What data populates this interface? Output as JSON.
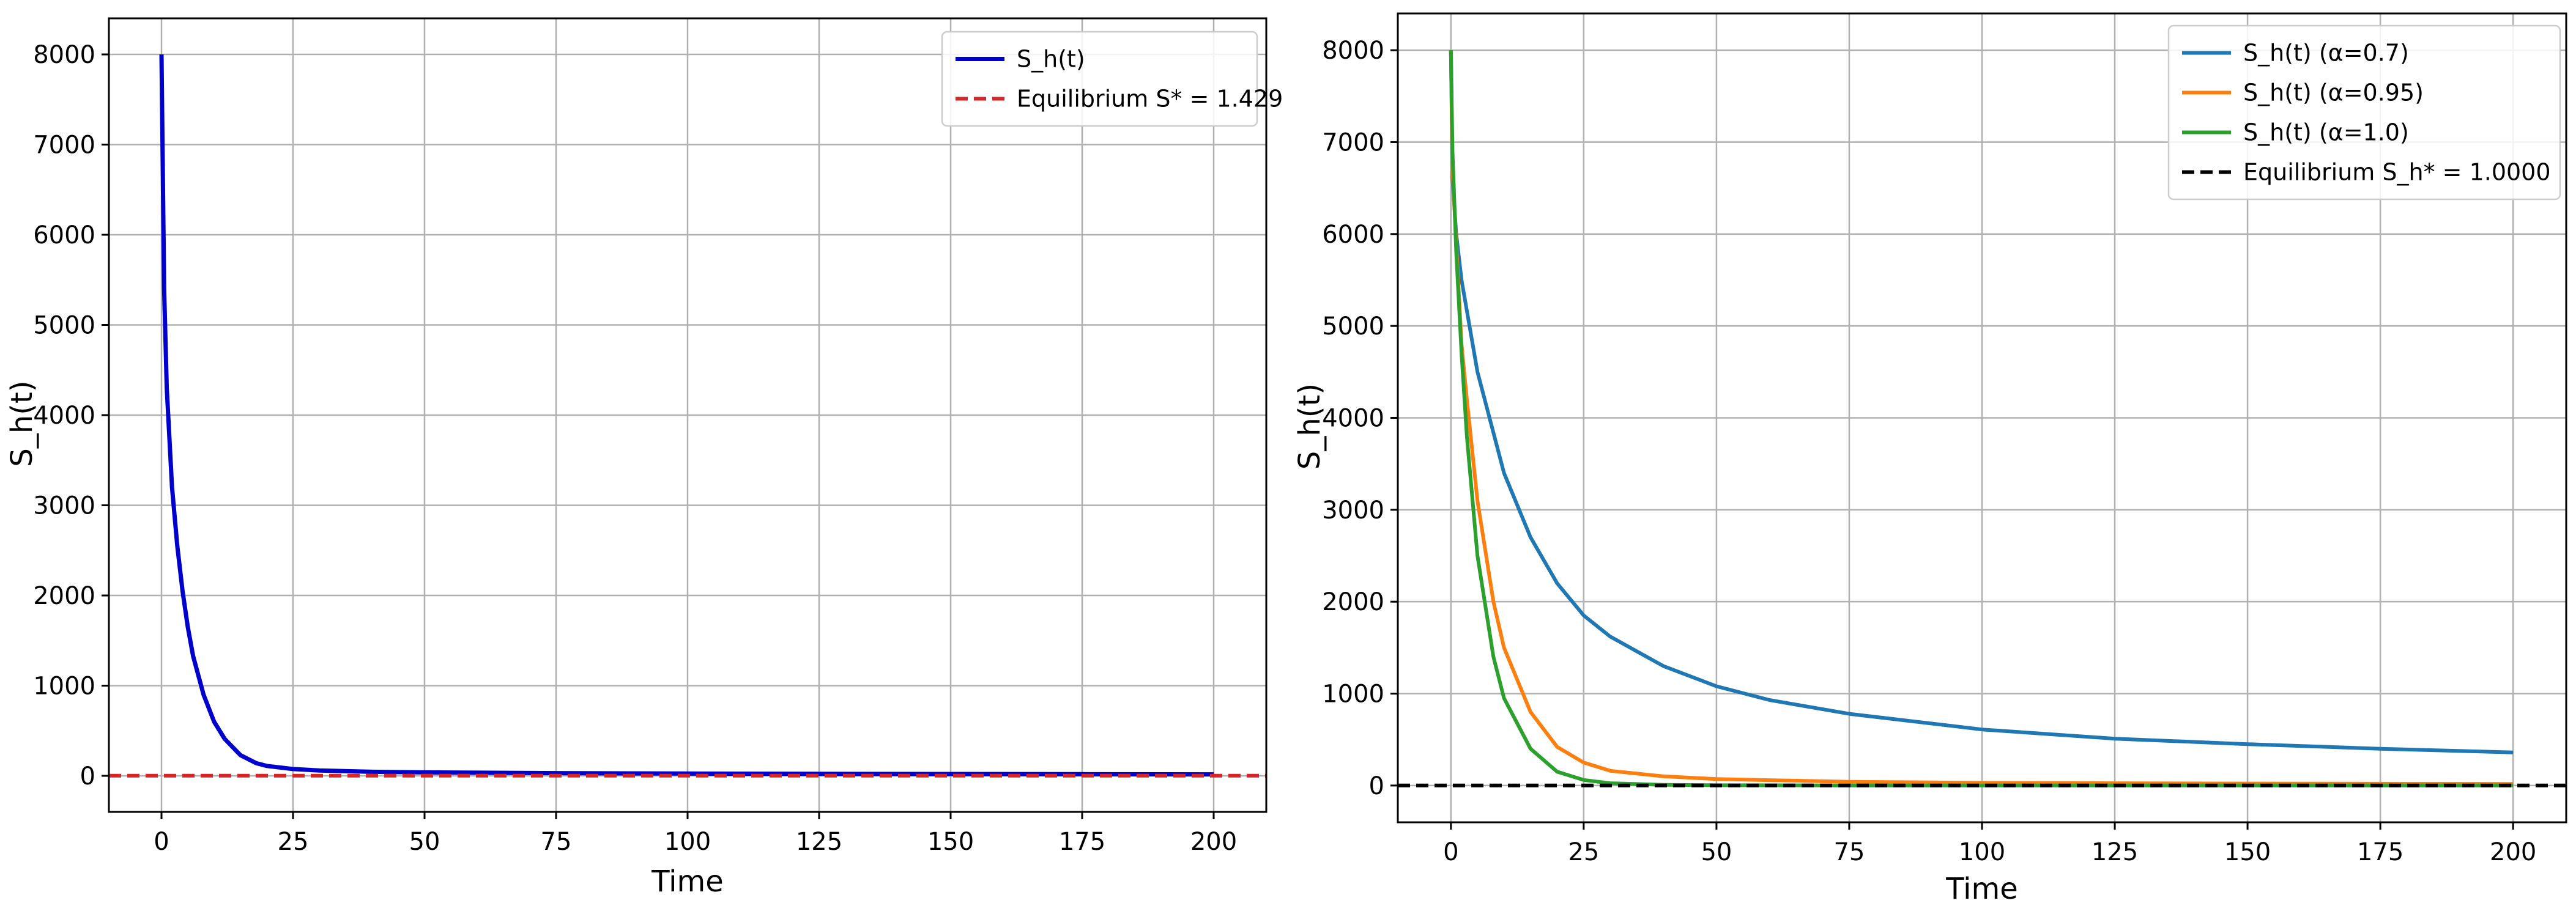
{
  "chart_data": [
    {
      "type": "line",
      "title": "",
      "xlabel": "Time",
      "ylabel": "S_h(t)",
      "xlim": [
        -10,
        210
      ],
      "ylim": [
        -400,
        8400
      ],
      "xticks": [
        0,
        25,
        50,
        75,
        100,
        125,
        150,
        175,
        200
      ],
      "xtick_labels": [
        "0",
        "25",
        "50",
        "75",
        "100",
        "125",
        "150",
        "175",
        "200"
      ],
      "yticks": [
        0,
        1000,
        2000,
        3000,
        4000,
        5000,
        6000,
        7000,
        8000
      ],
      "ytick_labels": [
        "0",
        "1000",
        "2000",
        "3000",
        "4000",
        "5000",
        "6000",
        "7000",
        "8000"
      ],
      "grid": true,
      "legend_position": "top-right",
      "series": [
        {
          "name": "S_h(t)",
          "color": "#0000cc",
          "style": "solid",
          "x": [
            0,
            0.5,
            1,
            2,
            3,
            4,
            5,
            6,
            8,
            10,
            12,
            15,
            18,
            20,
            25,
            30,
            40,
            50,
            75,
            100,
            125,
            150,
            175,
            200
          ],
          "y": [
            8000,
            5400,
            4300,
            3200,
            2550,
            2050,
            1650,
            1330,
            900,
            600,
            410,
            230,
            140,
            110,
            75,
            60,
            45,
            38,
            30,
            25,
            22,
            20,
            18,
            16
          ]
        },
        {
          "name": "Equilibrium S* = 1.429",
          "color": "#d62728",
          "style": "dashed",
          "x": [
            -10,
            210
          ],
          "y": [
            1.429,
            1.429
          ]
        }
      ]
    },
    {
      "type": "line",
      "title": "",
      "xlabel": "Time",
      "ylabel": "S_h(t)",
      "xlim": [
        -10,
        210
      ],
      "ylim": [
        -400,
        8400
      ],
      "xticks": [
        0,
        25,
        50,
        75,
        100,
        125,
        150,
        175,
        200
      ],
      "xtick_labels": [
        "0",
        "25",
        "50",
        "75",
        "100",
        "125",
        "150",
        "175",
        "200"
      ],
      "yticks": [
        0,
        1000,
        2000,
        3000,
        4000,
        5000,
        6000,
        7000,
        8000
      ],
      "ytick_labels": [
        "0",
        "1000",
        "2000",
        "3000",
        "4000",
        "5000",
        "6000",
        "7000",
        "8000"
      ],
      "grid": true,
      "legend_position": "top-right",
      "series": [
        {
          "name": "S_h(t) (α=0.7)",
          "color": "#1f77b4",
          "style": "solid",
          "x": [
            0,
            0.3,
            1,
            2,
            5,
            10,
            15,
            20,
            25,
            30,
            40,
            50,
            60,
            75,
            100,
            125,
            150,
            175,
            200
          ],
          "y": [
            8000,
            6600,
            6000,
            5500,
            4500,
            3400,
            2700,
            2200,
            1850,
            1620,
            1300,
            1080,
            930,
            780,
            610,
            510,
            450,
            400,
            360
          ]
        },
        {
          "name": "S_h(t) (α=0.95)",
          "color": "#ff7f0e",
          "style": "solid",
          "x": [
            0,
            0.3,
            1,
            2,
            3,
            5,
            8,
            10,
            15,
            20,
            25,
            30,
            40,
            50,
            75,
            100,
            125,
            150,
            175,
            200
          ],
          "y": [
            8000,
            6700,
            5900,
            4800,
            4200,
            3100,
            2000,
            1500,
            800,
            420,
            250,
            160,
            100,
            70,
            40,
            30,
            25,
            22,
            20,
            18
          ]
        },
        {
          "name": "S_h(t) (α=1.0)",
          "color": "#2ca02c",
          "style": "solid",
          "x": [
            0,
            0.3,
            1,
            2,
            3,
            5,
            8,
            10,
            15,
            20,
            25,
            30,
            40,
            50,
            75,
            100,
            125,
            150,
            175,
            200
          ],
          "y": [
            8000,
            6900,
            5800,
            4700,
            3800,
            2500,
            1400,
            950,
            400,
            150,
            60,
            25,
            8,
            3,
            1,
            1,
            1,
            1,
            1,
            1
          ]
        },
        {
          "name": "Equilibrium S_h* = 1.0000",
          "color": "#000000",
          "style": "dashed",
          "x": [
            -10,
            210
          ],
          "y": [
            1.0,
            1.0
          ]
        }
      ]
    }
  ]
}
